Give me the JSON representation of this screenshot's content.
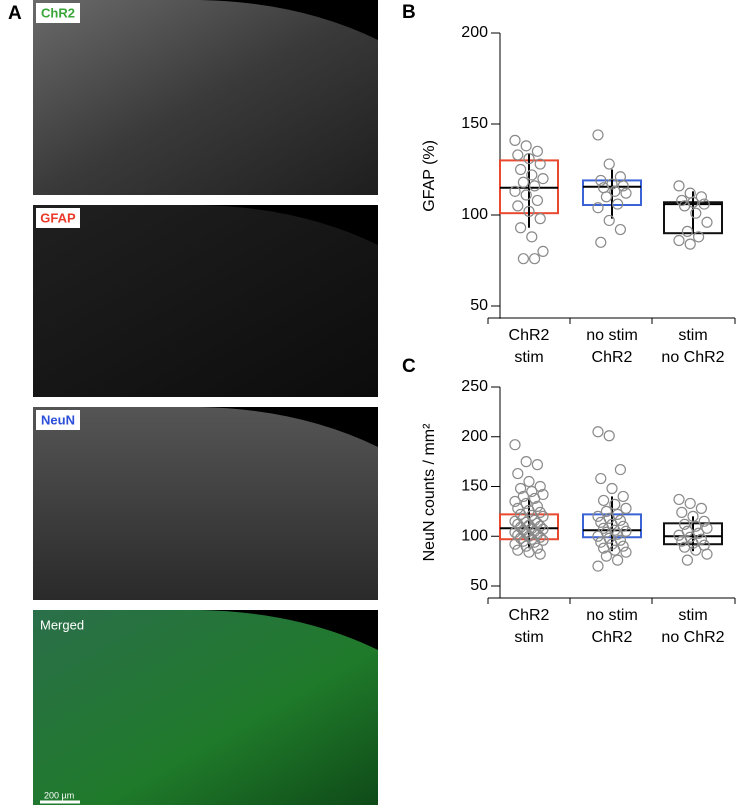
{
  "figure": {
    "panel": "A",
    "images": [
      {
        "label": "ChR2"
      },
      {
        "label": "GFAP"
      },
      {
        "label": "NeuN"
      },
      {
        "label": "Merged"
      }
    ],
    "scale_bar": "200 µm"
  },
  "chart_data": [
    {
      "type": "box",
      "panel": "B",
      "y_label": "GFAP (%)",
      "categories": [
        [
          "ChR2",
          "stim"
        ],
        [
          "no stim",
          "ChR2"
        ],
        [
          "stim",
          "no ChR2"
        ]
      ],
      "ylim": [
        43,
        200
      ],
      "yticks": [
        50,
        100,
        150,
        200
      ],
      "boxes": [
        {
          "color": "#e8492f",
          "q1": 101,
          "median": 115,
          "q3": 130,
          "whislo": 93,
          "whishi": 134,
          "points": [
            141,
            138,
            135,
            133,
            131,
            128,
            125,
            122,
            120,
            118,
            116,
            113,
            111,
            108,
            105,
            102,
            98,
            93,
            88,
            80,
            76,
            76
          ]
        },
        {
          "color": "#3b63d6",
          "q1": 105.5,
          "median": 115.5,
          "q3": 119,
          "whislo": 98,
          "whishi": 125,
          "points": [
            144,
            128,
            121,
            119,
            117,
            116,
            115,
            113,
            112,
            110,
            106,
            104,
            97,
            92,
            85
          ]
        },
        {
          "color": "#111111",
          "q1": 90,
          "median": 106,
          "q3": 107,
          "whislo": 90,
          "whishi": 113,
          "points": [
            116,
            112,
            110,
            108,
            107,
            106,
            105,
            101,
            96,
            91,
            88,
            86,
            84
          ]
        }
      ]
    },
    {
      "type": "box",
      "panel": "C",
      "y_label": "NeuN counts / mm²",
      "categories": [
        [
          "ChR2",
          "stim"
        ],
        [
          "no stim",
          "ChR2"
        ],
        [
          "stim",
          "no ChR2"
        ]
      ],
      "ylim": [
        38,
        250
      ],
      "yticks": [
        50,
        100,
        150,
        200,
        250
      ],
      "boxes": [
        {
          "color": "#e8492f",
          "q1": 97,
          "median": 108,
          "q3": 122,
          "whislo": 88,
          "whishi": 138,
          "points": [
            192,
            175,
            172,
            163,
            155,
            150,
            148,
            145,
            142,
            140,
            138,
            135,
            133,
            130,
            128,
            126,
            124,
            122,
            121,
            120,
            118,
            116,
            115,
            114,
            113,
            112,
            111,
            110,
            109,
            108,
            107,
            106,
            105,
            104,
            103,
            102,
            101,
            100,
            99,
            98,
            97,
            96,
            95,
            94,
            92,
            90,
            88,
            86,
            84,
            82
          ]
        },
        {
          "color": "#3b63d6",
          "q1": 99,
          "median": 106,
          "q3": 122,
          "whislo": 85,
          "whishi": 140,
          "points": [
            205,
            201,
            167,
            158,
            148,
            140,
            136,
            132,
            128,
            125,
            122,
            120,
            118,
            116,
            114,
            112,
            110,
            108,
            106,
            105,
            104,
            102,
            100,
            98,
            96,
            94,
            92,
            90,
            88,
            86,
            84,
            80,
            76,
            70
          ]
        },
        {
          "color": "#111111",
          "q1": 92,
          "median": 100,
          "q3": 113,
          "whislo": 85,
          "whishi": 120,
          "points": [
            137,
            133,
            128,
            124,
            120,
            115,
            112,
            110,
            108,
            105,
            103,
            101,
            99,
            97,
            95,
            93,
            91,
            89,
            86,
            82,
            76
          ]
        }
      ]
    }
  ]
}
